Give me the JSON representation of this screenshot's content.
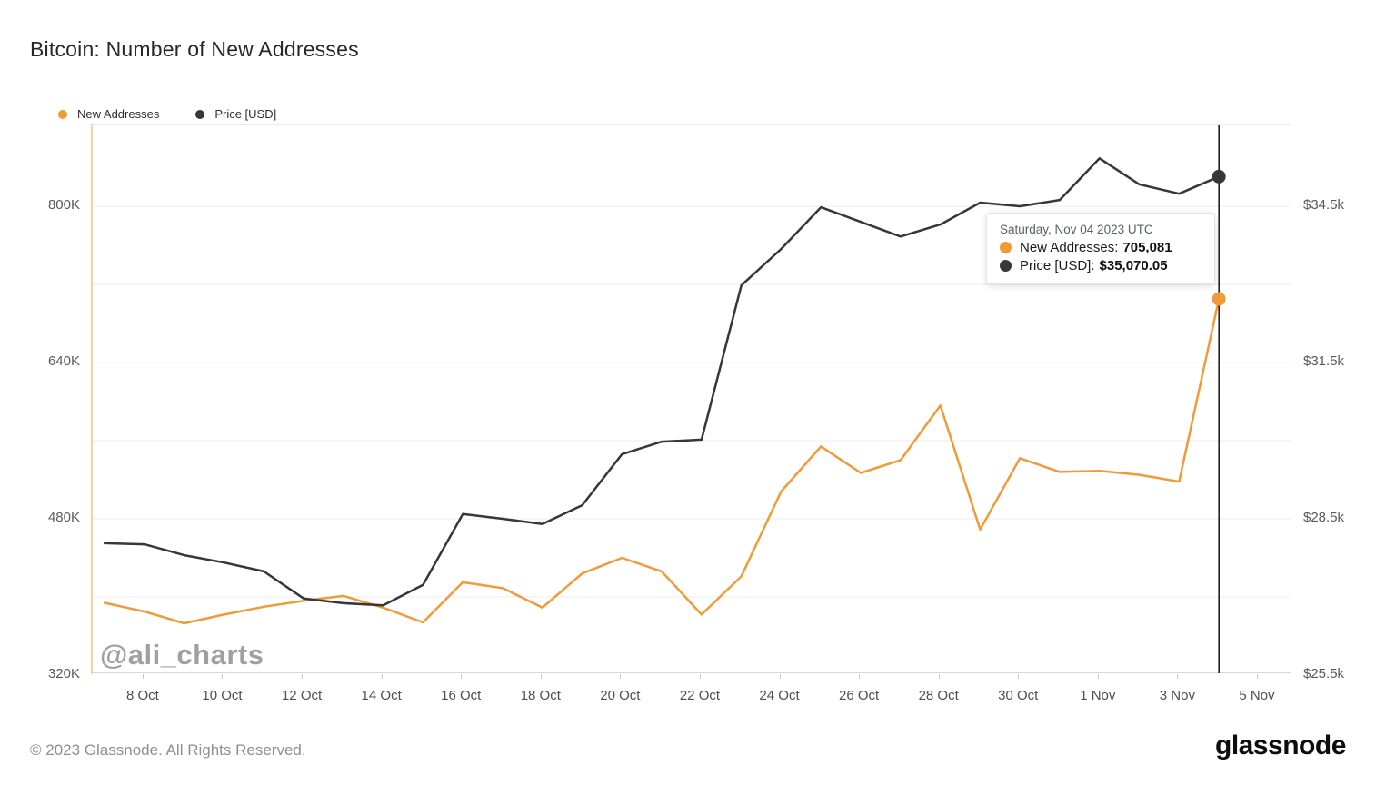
{
  "title": "Bitcoin: Number of New Addresses",
  "legend": {
    "items": [
      {
        "label": "New Addresses",
        "color": "#f09a38"
      },
      {
        "label": "Price [USD]",
        "color": "#36363b"
      }
    ]
  },
  "watermark": "@ali_charts",
  "tooltip": {
    "date": "Saturday, Nov 04 2023 UTC",
    "rows": [
      {
        "label": "New Addresses:",
        "value": "705,081",
        "color": "#f09a38"
      },
      {
        "label": "Price [USD]:",
        "value": "$35,070.05",
        "color": "#36363b"
      }
    ]
  },
  "footer": {
    "copyright": "© 2023 Glassnode. All Rights Reserved.",
    "brand": "glassnode"
  },
  "colors": {
    "new_addresses": "#f09a38",
    "price": "#36363b",
    "crosshair": "#222222",
    "grid": "#ededed",
    "axis_line": "#d8d8d8",
    "watermark": "#9b9b9b"
  },
  "chart_data": {
    "type": "line",
    "title": "Bitcoin: Number of New Addresses",
    "legend_position": "top-left",
    "grid": "horizontal",
    "x_dates": [
      "7 Oct",
      "8 Oct",
      "9 Oct",
      "10 Oct",
      "11 Oct",
      "12 Oct",
      "13 Oct",
      "14 Oct",
      "15 Oct",
      "16 Oct",
      "17 Oct",
      "18 Oct",
      "19 Oct",
      "20 Oct",
      "21 Oct",
      "22 Oct",
      "23 Oct",
      "24 Oct",
      "25 Oct",
      "26 Oct",
      "27 Oct",
      "28 Oct",
      "29 Oct",
      "30 Oct",
      "31 Oct",
      "1 Nov",
      "2 Nov",
      "3 Nov",
      "4 Nov"
    ],
    "series": [
      {
        "name": "New Addresses",
        "axis": "left",
        "color": "#f09a38",
        "values": [
          394000,
          385000,
          373000,
          382000,
          390000,
          396000,
          401000,
          389000,
          374000,
          415000,
          409000,
          389000,
          424000,
          440000,
          426000,
          382000,
          421000,
          508000,
          554000,
          527000,
          540000,
          596000,
          469000,
          542000,
          528000,
          529000,
          525000,
          518000,
          705081
        ]
      },
      {
        "name": "Price [USD]",
        "axis": "right",
        "color": "#36363b",
        "values": [
          28030,
          28010,
          27800,
          27660,
          27490,
          26970,
          26880,
          26840,
          27230,
          28590,
          28500,
          28400,
          28760,
          29740,
          29980,
          30020,
          32980,
          33680,
          34480,
          34200,
          33920,
          34150,
          34570,
          34500,
          34620,
          35420,
          34920,
          34740,
          35070.05
        ]
      }
    ],
    "left_axis": {
      "tick_labels": [
        "800K",
        "640K",
        "480K",
        "320K"
      ],
      "tick_values": [
        800000,
        640000,
        480000,
        320000
      ],
      "grid_values": [
        800000,
        720000,
        640000,
        560000,
        480000,
        400000,
        320000
      ]
    },
    "right_axis": {
      "tick_labels": [
        "$34.5k",
        "$31.5k",
        "$28.5k",
        "$25.5k"
      ],
      "tick_values": [
        34500,
        31500,
        28500,
        25500
      ]
    },
    "x_axis": {
      "tick_labels": [
        "8 Oct",
        "10 Oct",
        "12 Oct",
        "14 Oct",
        "16 Oct",
        "18 Oct",
        "20 Oct",
        "22 Oct",
        "24 Oct",
        "26 Oct",
        "28 Oct",
        "30 Oct",
        "1 Nov",
        "3 Nov",
        "5 Nov"
      ]
    },
    "highlight": {
      "date": "Saturday, Nov 04 2023 UTC",
      "new_addresses": 705081,
      "price_usd": 35070.05
    }
  }
}
